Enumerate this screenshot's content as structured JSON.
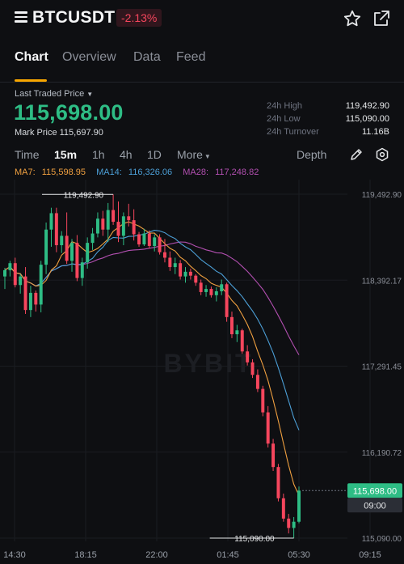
{
  "header": {
    "symbol": "BTCUSDT",
    "change_pct": "-2.13%"
  },
  "tabs": [
    {
      "label": "Chart",
      "active": true
    },
    {
      "label": "Overview",
      "active": false
    },
    {
      "label": "Data",
      "active": false
    },
    {
      "label": "Feed",
      "active": false
    }
  ],
  "price": {
    "last_traded_label": "Last Traded Price",
    "last_traded_value": "115,698.00",
    "mark_price_label": "Mark Price",
    "mark_price_value": "115,697.90"
  },
  "stats": [
    {
      "label": "24h High",
      "value": "119,492.90"
    },
    {
      "label": "24h Low",
      "value": "115,090.00"
    },
    {
      "label": "24h Turnover",
      "value": "11.16B"
    }
  ],
  "timeframes": {
    "items": [
      "Time",
      "15m",
      "1h",
      "4h",
      "1D"
    ],
    "active": "15m",
    "more_label": "More",
    "depth_label": "Depth"
  },
  "ma": [
    {
      "label": "MA7:",
      "value": "115,598.95",
      "color": "#f0a040"
    },
    {
      "label": "MA14:",
      "value": "116,326.06",
      "color": "#4c9fd6"
    },
    {
      "label": "MA28:",
      "value": "117,248.82",
      "color": "#b24fb0"
    }
  ],
  "colors": {
    "up": "#2ebd85",
    "down": "#f6465d",
    "accent": "#f7a600",
    "ma7": "#f0a040",
    "ma14": "#4c9fd6",
    "ma28": "#b24fb0"
  },
  "chart_data": {
    "type": "candlestick",
    "watermark": "BYBIT",
    "y_ticks": [
      "119,492.90",
      "118,392.17",
      "117,291.45",
      "116,190.72",
      "115,090.00"
    ],
    "y_tick_values": [
      119492.9,
      118392.17,
      117291.45,
      116190.72,
      115090.0
    ],
    "x_ticks": [
      "14:30",
      "18:15",
      "22:00",
      "01:45",
      "05:30",
      "09:15"
    ],
    "high_label": "119,492.90",
    "low_label": "115,090.00",
    "last_price_tag": "115,698.00",
    "countdown_tag": "09:00",
    "last_price": 115698.0,
    "candles": [
      [
        118440,
        118550,
        118280,
        118520
      ],
      [
        118520,
        118640,
        118440,
        118610
      ],
      [
        118610,
        118680,
        118300,
        118330
      ],
      [
        118330,
        118470,
        118220,
        118440
      ],
      [
        118440,
        118560,
        117960,
        118010
      ],
      [
        118010,
        118320,
        117920,
        118230
      ],
      [
        118230,
        118260,
        117990,
        118080
      ],
      [
        118080,
        118640,
        117980,
        118590
      ],
      [
        118590,
        119130,
        118470,
        119040
      ],
      [
        119040,
        119320,
        118820,
        119250
      ],
      [
        119250,
        119320,
        118750,
        118840
      ],
      [
        118840,
        119020,
        118740,
        118960
      ],
      [
        118960,
        119260,
        118600,
        118640
      ],
      [
        118640,
        118920,
        118500,
        118870
      ],
      [
        118870,
        118970,
        118380,
        118420
      ],
      [
        118420,
        118680,
        118320,
        118620
      ],
      [
        118620,
        118940,
        118540,
        118870
      ],
      [
        118870,
        119060,
        118780,
        118990
      ],
      [
        118990,
        119260,
        118940,
        119180
      ],
      [
        119180,
        119280,
        118960,
        119040
      ],
      [
        119040,
        119380,
        118880,
        119290
      ],
      [
        119290,
        119490,
        119100,
        119140
      ],
      [
        119140,
        119400,
        118880,
        118960
      ],
      [
        118960,
        119260,
        118840,
        119210
      ],
      [
        119210,
        119370,
        119080,
        119160
      ],
      [
        119160,
        119300,
        118900,
        118980
      ],
      [
        118980,
        119010,
        118820,
        118850
      ],
      [
        118850,
        119050,
        118830,
        118990
      ],
      [
        118990,
        119030,
        118800,
        118830
      ],
      [
        118830,
        118980,
        118760,
        118940
      ],
      [
        118940,
        118980,
        118720,
        118750
      ],
      [
        118750,
        118920,
        118620,
        118680
      ],
      [
        118680,
        118760,
        118510,
        118560
      ],
      [
        118560,
        118680,
        118470,
        118610
      ],
      [
        118610,
        118650,
        118400,
        118440
      ],
      [
        118440,
        118560,
        118360,
        118500
      ],
      [
        118500,
        118540,
        118400,
        118450
      ],
      [
        118450,
        118470,
        118320,
        118360
      ],
      [
        118360,
        118400,
        118200,
        118240
      ],
      [
        118240,
        118330,
        118180,
        118280
      ],
      [
        118280,
        118310,
        118170,
        118200
      ],
      [
        118200,
        118300,
        118120,
        118250
      ],
      [
        118250,
        118400,
        118200,
        118340
      ],
      [
        118340,
        118360,
        117860,
        117920
      ],
      [
        117920,
        117990,
        117650,
        117700
      ],
      [
        117700,
        117820,
        117600,
        117750
      ],
      [
        117750,
        117770,
        117450,
        117480
      ],
      [
        117480,
        117560,
        117300,
        117340
      ],
      [
        117340,
        117380,
        117140,
        117180
      ],
      [
        117180,
        117250,
        116960,
        117000
      ],
      [
        117000,
        117040,
        116650,
        116700
      ],
      [
        116700,
        116780,
        116250,
        116300
      ],
      [
        116300,
        116360,
        115950,
        116000
      ],
      [
        116000,
        116040,
        115560,
        115600
      ],
      [
        115600,
        115660,
        115300,
        115340
      ],
      [
        115340,
        115400,
        115150,
        115220
      ],
      [
        115220,
        115360,
        115090,
        115300
      ],
      [
        115300,
        115750,
        115280,
        115698
      ]
    ]
  }
}
